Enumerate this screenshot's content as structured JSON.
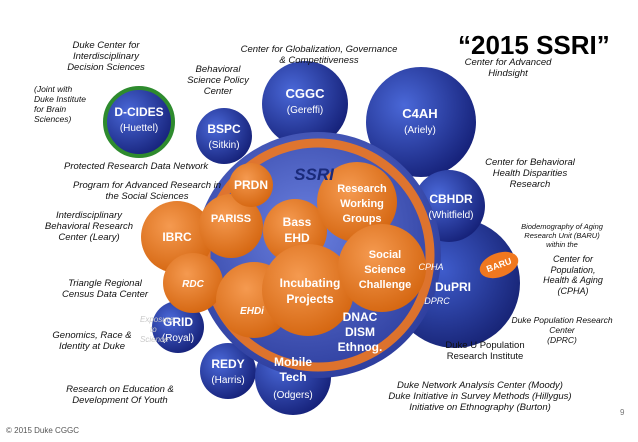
{
  "title": "“2015 SSRI”",
  "footer": "© 2015 Duke CGGC",
  "page_number": "9",
  "colors": {
    "blue_dark": "#1a2a7a",
    "blue_light": "#3a58c8",
    "orange": "#f07820",
    "orange_dark": "#c05a10",
    "green_ring": "#2e8b2e"
  },
  "center": {
    "name": "SSRI"
  },
  "circles": {
    "dcides": {
      "name": "D-CIDES",
      "sub": "(Huettel)"
    },
    "bspc": {
      "name": "BSPC",
      "sub": "(Sitkin)"
    },
    "cggc": {
      "name": "CGGC",
      "sub": "(Gereffi)"
    },
    "c4ah": {
      "name": "C4AH",
      "sub": "(Ariely)"
    },
    "cbhdr": {
      "name": "CBHDR",
      "sub": "(Whitfield)"
    },
    "grid": {
      "name": "GRID",
      "sub": "(Royal)"
    },
    "redy": {
      "name": "REDY",
      "sub": "(Harris)"
    },
    "mobile": {
      "line1": "Mobile",
      "line2": "Tech",
      "sub": "(Odgers)"
    },
    "dupri": {
      "name": "DuPRI",
      "cpha": "CPHA",
      "dprc": "DPRC",
      "baru": "BARU"
    },
    "dnac": {
      "line1": "DNAC",
      "line2": "DISM",
      "line3": "Ethnog."
    },
    "prdn": {
      "name": "PRDN"
    },
    "pariss": {
      "name": "PARISS"
    },
    "ibrc": {
      "name": "IBRC"
    },
    "rdc": {
      "name": "RDC"
    },
    "ehdi": {
      "name": "EHDi"
    },
    "bass": {
      "line1": "Bass",
      "line2": "EHD"
    },
    "rwg": {
      "line1": "Research",
      "line2": "Working",
      "line3": "Groups"
    },
    "ssc": {
      "line1": "Social",
      "line2": "Science",
      "line3": "Challenge"
    },
    "incub": {
      "line1": "Incubating",
      "line2": "Projects"
    }
  },
  "labels": {
    "dcides_full": [
      "Duke Center for",
      "Interdisciplinary",
      "Decision Sciences"
    ],
    "dcides_note": [
      "(Joint with",
      "Duke Institute",
      "for Brain",
      "Sciences)"
    ],
    "bspc_full": [
      "Behavioral",
      "Science Policy",
      "Center"
    ],
    "cggc_full": [
      "Center for Globalization, Governance",
      "& Competitiveness"
    ],
    "c4ah_full": [
      "Center for Advanced",
      "Hindsight"
    ],
    "prdn_full": "Protected Research Data Network",
    "pariss_full": [
      "Program for Advanced Research in",
      "the Social Sciences"
    ],
    "ibrc_full": [
      "Interdisciplinary",
      "Behavioral Research",
      "Center (Leary)"
    ],
    "cbhdr_full": [
      "Center for Behavioral",
      "Health Disparities",
      "Research"
    ],
    "baru_full": [
      "Biodemography of Aging",
      "Research Unit (BARU)",
      "within the"
    ],
    "cpha_full": [
      "Center for",
      "Population,",
      "Health & Aging",
      "(CPHA)"
    ],
    "rdc_full": [
      "Triangle Regional",
      "Census Data Center"
    ],
    "dprc_full": [
      "Duke Population Research",
      "Center",
      "(DPRC)"
    ],
    "grid_full": [
      "Genomics, Race &",
      "Identity at Duke"
    ],
    "dupri_full": [
      "Duke U Population",
      "Research Institute"
    ],
    "redy_full": [
      "Research on Education &",
      "Development Of Youth"
    ],
    "dnac_full": [
      "Duke Network Analysis Center (Moody)",
      "Duke Initiative in Survey Methods (Hillygus)",
      "Initiative on Ethnography (Burton)"
    ],
    "faint": [
      "Exposure",
      "to",
      "Science"
    ]
  }
}
